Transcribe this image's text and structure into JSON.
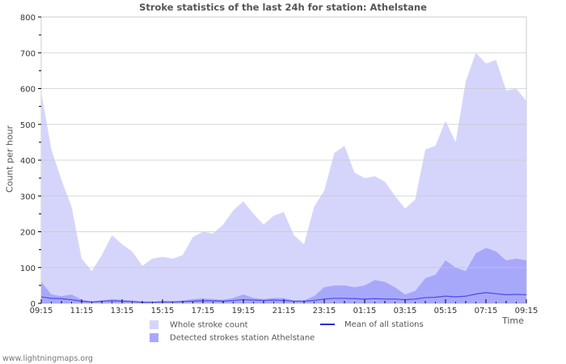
{
  "chart": {
    "title": "Stroke statistics of the last 24h for station: Athelstane",
    "ylabel": "Count per hour",
    "xlabel": "Time",
    "footer": "www.lightningmaps.org",
    "legend": [
      {
        "label": "Whole stroke count",
        "color": "#d5d5fc",
        "type": "area"
      },
      {
        "label": "Detected strokes station Athelstane",
        "color": "#a8a8fb",
        "type": "area"
      },
      {
        "label": "Mean of all stations",
        "color": "#2b2bdc",
        "type": "line"
      }
    ]
  },
  "chart_data": {
    "type": "area",
    "title": "Stroke statistics of the last 24h for station: Athelstane",
    "xlabel": "Time",
    "ylabel": "Count per hour",
    "ylim": [
      0,
      800
    ],
    "yticks": [
      0,
      100,
      200,
      300,
      400,
      500,
      600,
      700,
      800
    ],
    "xtick_labels": [
      "09:15",
      "11:15",
      "13:15",
      "15:15",
      "17:15",
      "19:15",
      "21:15",
      "23:15",
      "01:15",
      "03:15",
      "05:15",
      "07:15",
      "09:15"
    ],
    "grid": true,
    "legend_position": "bottom",
    "x": [
      "09:15",
      "09:45",
      "10:15",
      "10:45",
      "11:15",
      "11:45",
      "12:15",
      "12:45",
      "13:15",
      "13:45",
      "14:15",
      "14:45",
      "15:15",
      "15:45",
      "16:15",
      "16:45",
      "17:15",
      "17:45",
      "18:15",
      "18:45",
      "19:15",
      "19:45",
      "20:15",
      "20:45",
      "21:15",
      "21:45",
      "22:15",
      "22:45",
      "23:15",
      "23:45",
      "00:15",
      "00:45",
      "01:15",
      "01:45",
      "02:15",
      "02:45",
      "03:15",
      "03:45",
      "04:15",
      "04:45",
      "05:15",
      "05:45",
      "06:15",
      "06:45",
      "07:15",
      "07:45",
      "08:15",
      "08:45",
      "09:15"
    ],
    "series": [
      {
        "name": "Whole stroke count",
        "values": [
          590,
          430,
          345,
          270,
          125,
          90,
          135,
          190,
          165,
          145,
          105,
          125,
          130,
          125,
          135,
          185,
          200,
          195,
          220,
          260,
          285,
          250,
          220,
          245,
          255,
          190,
          165,
          270,
          315,
          420,
          440,
          365,
          350,
          355,
          340,
          300,
          265,
          290,
          430,
          440,
          510,
          450,
          620,
          700,
          670,
          680,
          595,
          600,
          565
        ]
      },
      {
        "name": "Detected strokes station Athelstane",
        "values": [
          60,
          25,
          20,
          25,
          10,
          5,
          8,
          12,
          10,
          8,
          5,
          5,
          6,
          5,
          8,
          12,
          14,
          12,
          10,
          15,
          25,
          15,
          12,
          15,
          15,
          8,
          8,
          20,
          45,
          50,
          50,
          45,
          50,
          65,
          60,
          45,
          25,
          35,
          70,
          80,
          120,
          100,
          90,
          140,
          155,
          145,
          120,
          125,
          120
        ]
      },
      {
        "name": "Mean of all stations",
        "values": [
          18,
          14,
          13,
          10,
          6,
          4,
          6,
          7,
          6,
          5,
          3,
          3,
          4,
          4,
          5,
          6,
          7,
          7,
          6,
          8,
          10,
          9,
          8,
          9,
          8,
          6,
          6,
          8,
          12,
          14,
          14,
          13,
          12,
          13,
          12,
          12,
          10,
          12,
          16,
          17,
          20,
          18,
          20,
          26,
          30,
          27,
          24,
          25,
          24
        ]
      }
    ]
  }
}
